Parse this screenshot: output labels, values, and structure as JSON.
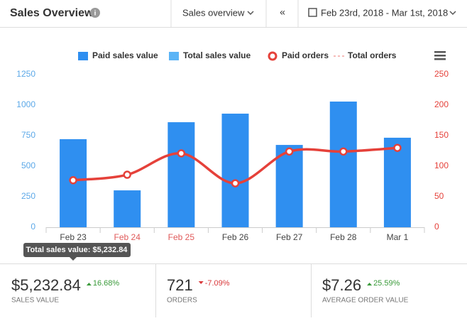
{
  "header": {
    "title": "Sales Overview",
    "dropdown": "Sales overview",
    "collapse": "«",
    "date_range": "Feb 23rd, 2018 - Mar 1st, 2018"
  },
  "chart_data": {
    "type": "bar_line",
    "categories": [
      "Feb 23",
      "Feb 24",
      "Feb 25",
      "Feb 26",
      "Feb 27",
      "Feb 28",
      "Mar 1"
    ],
    "category_colors": [
      "#444444",
      "#e05a5a",
      "#e05a5a",
      "#444444",
      "#444444",
      "#444444",
      "#444444"
    ],
    "series": [
      {
        "name": "Paid sales value",
        "color": "#2f8ff0",
        "kind": "bar",
        "values": [
          721,
          302,
          860,
          930,
          674,
          1029,
          733
        ]
      },
      {
        "name": "Total sales value",
        "color": "#5bb4f6",
        "kind": "bar",
        "values": [
          null,
          null,
          null,
          null,
          null,
          null,
          null
        ]
      },
      {
        "name": "Paid orders",
        "color": "#e5413a",
        "kind": "line",
        "axis": "y2",
        "values": [
          77,
          86,
          121,
          72,
          124,
          124,
          130
        ]
      },
      {
        "name": "Total orders",
        "color": "#f4a3a0",
        "kind": "dashed",
        "axis": "y2",
        "values": [
          null,
          null,
          null,
          null,
          null,
          null,
          null
        ]
      }
    ],
    "ylim": [
      0,
      1250
    ],
    "yticks": [
      0,
      250,
      500,
      750,
      1000,
      1250
    ],
    "ycolor": "#5ba8e8",
    "y2lim": [
      0,
      250
    ],
    "y2ticks": [
      0,
      50,
      100,
      150,
      200,
      250
    ],
    "y2color": "#e5413a",
    "tooltip": "Total sales value: $5,232.84"
  },
  "stats": [
    {
      "value": "$5,232.84",
      "change": "16.68%",
      "direction": "up",
      "label": "SALES VALUE"
    },
    {
      "value": "721",
      "change": "-7.09%",
      "direction": "down",
      "label": "ORDERS"
    },
    {
      "value": "$7.26",
      "change": "25.59%",
      "direction": "up",
      "label": "AVERAGE ORDER VALUE"
    }
  ]
}
